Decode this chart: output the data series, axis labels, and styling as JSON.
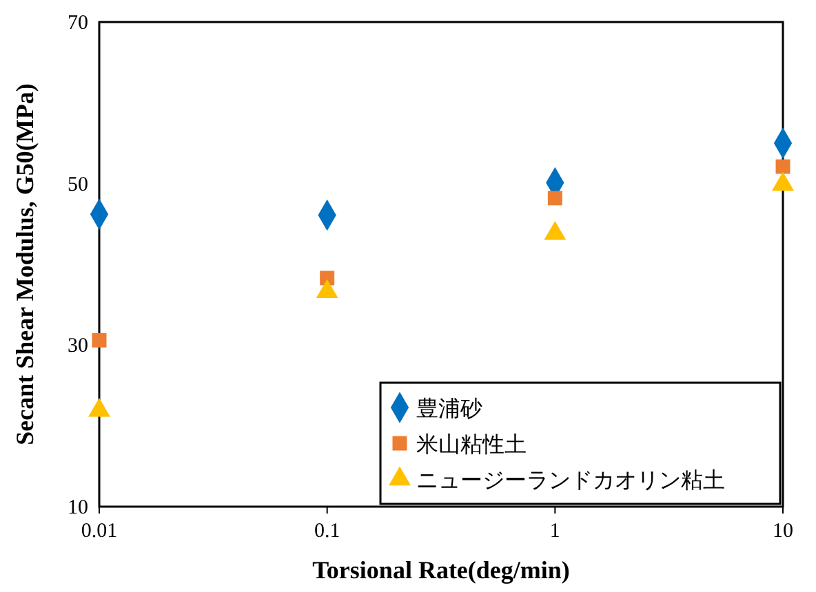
{
  "chart_data": {
    "type": "scatter",
    "xlabel": "Torsional Rate(deg/min)",
    "ylabel": "Secant Shear Modulus, G50(MPa)",
    "x": [
      0.01,
      0.1,
      1,
      10
    ],
    "series": [
      {
        "name": "豊浦砂",
        "color": "#0070c0",
        "values": [
          46.2,
          46.1,
          50.1,
          55.0
        ],
        "marker": "diamond"
      },
      {
        "name": "米山粘性土",
        "color": "#ed7d31",
        "values": [
          30.6,
          38.3,
          48.2,
          52.1
        ],
        "marker": "square"
      },
      {
        "name": "ニュージーランドカオリン粘土",
        "color": "#ffc000",
        "values": [
          21.9,
          36.6,
          43.8,
          49.9
        ],
        "marker": "triangle"
      }
    ],
    "log": "x",
    "xlim": [
      0.01,
      10
    ],
    "xticks": [
      0.01,
      0.1,
      1,
      10
    ],
    "ylim": [
      10,
      70
    ],
    "yticks": [
      10,
      30,
      50,
      70
    ],
    "grid": false,
    "legend": "bottom right"
  }
}
